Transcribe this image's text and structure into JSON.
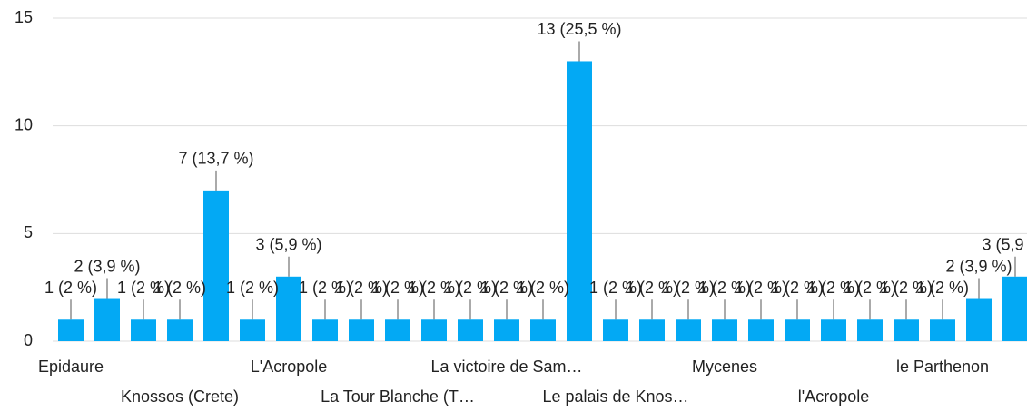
{
  "chart_data": {
    "type": "bar",
    "categories": [
      "Epidaure",
      null,
      null,
      "Knossos (Crete)",
      null,
      null,
      "L'Acropole",
      null,
      null,
      "La Tour Blanche (T…",
      null,
      null,
      "La victoire de Sam…",
      null,
      null,
      "Le palais de Knos…",
      null,
      null,
      "Mycenes",
      null,
      null,
      "l'Acropole",
      null,
      null,
      "le Parthenon",
      null,
      null
    ],
    "values": [
      1,
      2,
      1,
      1,
      7,
      1,
      3,
      1,
      1,
      1,
      1,
      1,
      1,
      1,
      13,
      1,
      1,
      1,
      1,
      1,
      1,
      1,
      1,
      1,
      1,
      2,
      3
    ],
    "value_labels": [
      "1 (2 %)",
      "2 (3,9 %)",
      "1 (2 %)",
      "1 (2 %)",
      "7 (13,7 %)",
      "1 (2 %)",
      "3 (5,9 %)",
      "1 (2 %)",
      "1 (2 %)",
      "1 (2 %)",
      "1 (2 %)",
      "1 (2 %)",
      "1 (2 %)",
      "1 (2 %)",
      "13 (25,5 %)",
      "1 (2 %)",
      "1 (2 %)",
      "1 (2 %)",
      "1 (2 %)",
      "1 (2 %)",
      "1 (2 %)",
      "1 (2 %)",
      "1 (2 %)",
      "1 (2 %)",
      "1 (2 %)",
      "2 (3,9 %)",
      "3 (5,9 %)"
    ],
    "color": "#03a9f4",
    "ylim": [
      0,
      15
    ],
    "yticks": [
      0,
      5,
      10,
      15
    ],
    "grid": true
  }
}
